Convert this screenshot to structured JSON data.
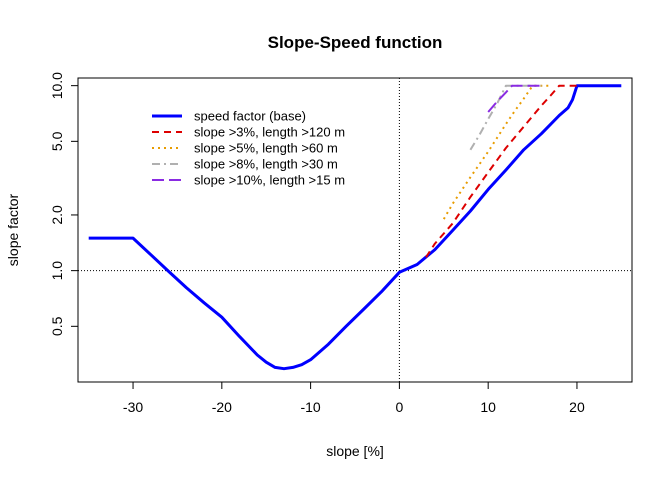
{
  "chart_data": {
    "type": "line",
    "title": "Slope-Speed function",
    "xlabel": "slope [%]",
    "ylabel": "slope factor",
    "xlim": [
      -36.2,
      26.2
    ],
    "ylim": [
      0.25,
      11
    ],
    "y_scale": "log",
    "x_ticks": [
      -30,
      -20,
      -10,
      0,
      10,
      20
    ],
    "x_tick_labels": [
      "-30",
      "-20",
      "-10",
      "0",
      "10",
      "20"
    ],
    "y_ticks": [
      0.5,
      1.0,
      2.0,
      5.0,
      10.0
    ],
    "y_tick_labels": [
      "0.5",
      "1.0",
      "2.0",
      "5.0",
      "10.0"
    ],
    "reference_lines": {
      "vertical_x": 0,
      "horizontal_y": 1.0,
      "style": "dotted"
    },
    "grid": false,
    "legend_position": "top-left",
    "series": [
      {
        "name": "speed factor (base)",
        "color": "#0000ff",
        "dash": "solid",
        "width": "thick",
        "x": [
          -35,
          -30,
          -28,
          -26,
          -24,
          -22,
          -20,
          -18,
          -16,
          -15,
          -14,
          -13,
          -12,
          -11,
          -10,
          -8,
          -6,
          -4,
          -2,
          0,
          2,
          4,
          6,
          8,
          10,
          12,
          14,
          16,
          18,
          19,
          19.5,
          20,
          22,
          25
        ],
        "y": [
          1.5,
          1.5,
          1.22,
          0.99,
          0.81,
          0.67,
          0.56,
          0.44,
          0.35,
          0.32,
          0.3,
          0.295,
          0.3,
          0.31,
          0.33,
          0.4,
          0.5,
          0.62,
          0.77,
          0.98,
          1.08,
          1.3,
          1.65,
          2.1,
          2.75,
          3.5,
          4.5,
          5.5,
          6.9,
          7.6,
          8.4,
          10.0,
          10.0,
          10.0
        ]
      },
      {
        "name": "slope >3%, length >120 m",
        "color": "#dd0000",
        "dash": "dashed",
        "width": "normal",
        "x": [
          3,
          4,
          6,
          8,
          10,
          12,
          14,
          16,
          17,
          18,
          19,
          20
        ],
        "y": [
          1.18,
          1.4,
          1.8,
          2.5,
          3.4,
          4.6,
          6.0,
          7.8,
          8.8,
          10.0,
          10.0,
          10.0
        ]
      },
      {
        "name": "slope >5%, length >60 m",
        "color": "#e89c00",
        "dash": "dotted",
        "width": "normal",
        "x": [
          5,
          6,
          8,
          10,
          12,
          13,
          14,
          15,
          16,
          17
        ],
        "y": [
          1.9,
          2.3,
          3.2,
          4.4,
          6.2,
          7.3,
          8.5,
          10.0,
          10.0,
          10.0
        ]
      },
      {
        "name": "slope >8%, length >30 m",
        "color": "#b0b0b0",
        "dash": "dashdot",
        "width": "normal",
        "x": [
          8,
          9,
          10,
          11,
          12,
          13,
          14,
          15,
          16
        ],
        "y": [
          4.5,
          5.4,
          6.6,
          8.0,
          10.0,
          10.0,
          10.0,
          10.0,
          10.0
        ]
      },
      {
        "name": "slope >10%, length >15 m",
        "color": "#8a2be2",
        "dash": "longdash",
        "width": "normal",
        "x": [
          10,
          11,
          12,
          12.7,
          13,
          14,
          15,
          16
        ],
        "y": [
          7.2,
          8.2,
          9.2,
          10.0,
          10.0,
          10.0,
          10.0,
          10.0
        ]
      }
    ]
  }
}
